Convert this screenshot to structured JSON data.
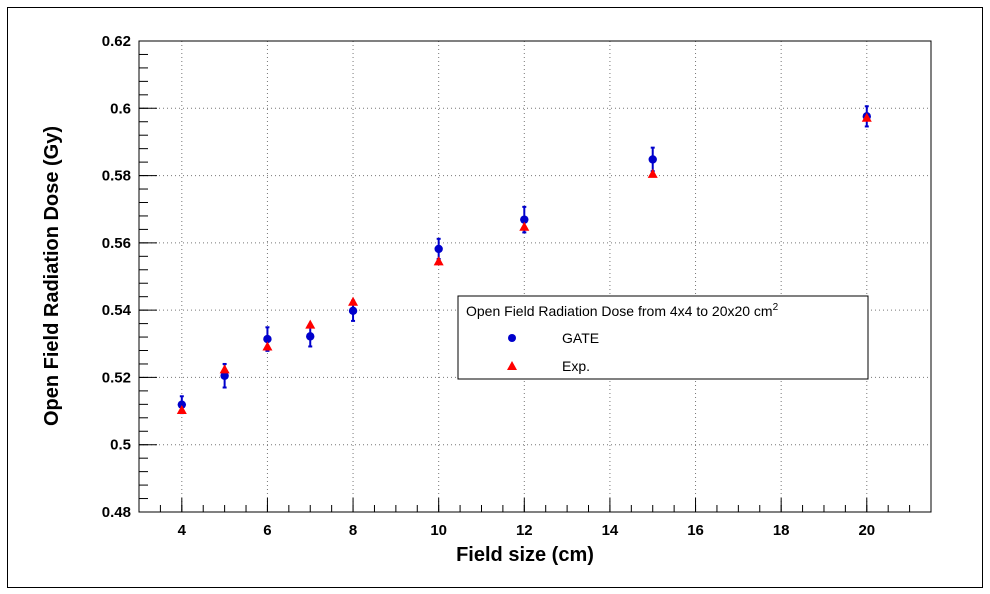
{
  "chart_data": {
    "type": "scatter",
    "title": "",
    "xlabel": "Field size (cm)",
    "ylabel": "Open Field Radiation Dose (Gy)",
    "xlim": [
      3,
      21.5
    ],
    "ylim": [
      0.48,
      0.62
    ],
    "xticks": [
      "4",
      "6",
      "8",
      "10",
      "12",
      "14",
      "16",
      "18",
      "20"
    ],
    "yticks": [
      "0.48",
      "0.5",
      "0.52",
      "0.54",
      "0.56",
      "0.58",
      "0.6",
      "0.62"
    ],
    "grid": true,
    "legend": {
      "title_main": "Open Field Radiation Dose from 4x4 to 20x20 cm",
      "title_sup": "2",
      "placement": "center-right"
    },
    "series": [
      {
        "name": "GATE",
        "marker": "circle",
        "color": "#0000cc",
        "points": [
          {
            "x": 4,
            "y": 0.5119,
            "err": 0.0025
          },
          {
            "x": 5,
            "y": 0.5205,
            "err": 0.0035
          },
          {
            "x": 6,
            "y": 0.5314,
            "err": 0.0035
          },
          {
            "x": 7,
            "y": 0.5322,
            "err": 0.003
          },
          {
            "x": 8,
            "y": 0.5398,
            "err": 0.003
          },
          {
            "x": 10,
            "y": 0.5582,
            "err": 0.003
          },
          {
            "x": 12,
            "y": 0.5669,
            "err": 0.0038
          },
          {
            "x": 15,
            "y": 0.5848,
            "err": 0.0035
          },
          {
            "x": 20,
            "y": 0.5976,
            "err": 0.003
          }
        ]
      },
      {
        "name": "Exp.",
        "marker": "triangle",
        "color": "#ff0000",
        "points": [
          {
            "x": 4,
            "y": 0.5103
          },
          {
            "x": 5,
            "y": 0.5224
          },
          {
            "x": 6,
            "y": 0.5292
          },
          {
            "x": 7,
            "y": 0.5357
          },
          {
            "x": 8,
            "y": 0.5425
          },
          {
            "x": 10,
            "y": 0.5545
          },
          {
            "x": 12,
            "y": 0.5648
          },
          {
            "x": 15,
            "y": 0.5805
          },
          {
            "x": 20,
            "y": 0.5972
          }
        ]
      }
    ]
  }
}
